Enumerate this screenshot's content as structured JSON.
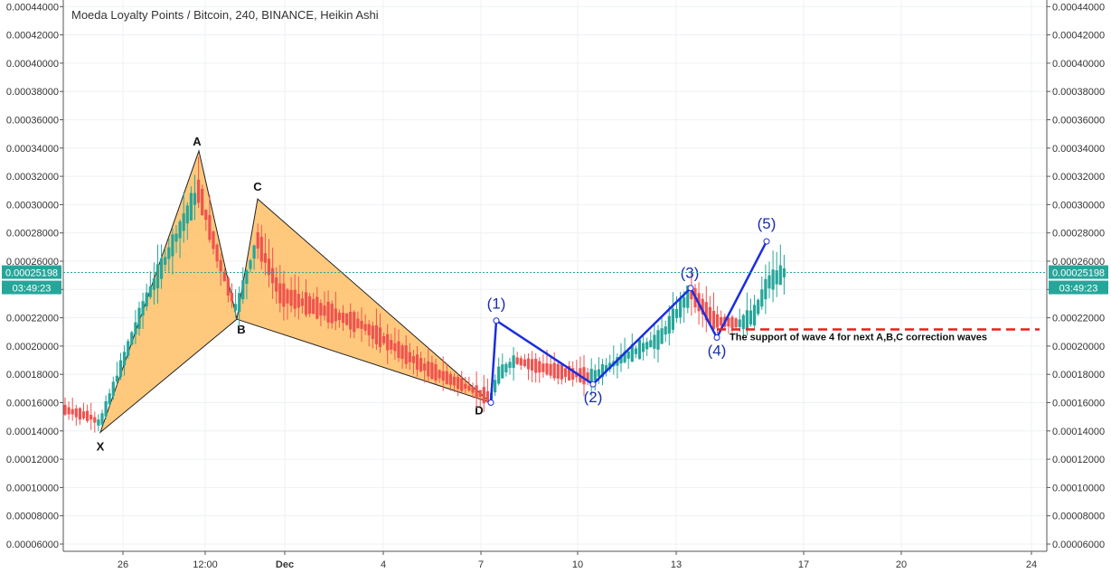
{
  "chart_data": {
    "type": "candlestick",
    "title": "Moeda Loyalty Points / Bitcoin, 240, BINANCE, Heikin Ashi",
    "ylim": [
      6e-05,
      0.000444
    ],
    "y_ticks": [
      "0.00006000",
      "0.00008000",
      "0.00010000",
      "0.00012000",
      "0.00014000",
      "0.00016000",
      "0.00018000",
      "0.00020000",
      "0.00022000",
      "0.00024000",
      "0.00026000",
      "0.00028000",
      "0.00030000",
      "0.00032000",
      "0.00034000",
      "0.00036000",
      "0.00038000",
      "0.00040000",
      "0.00042000",
      "0.00044000"
    ],
    "x_ticks": [
      "26",
      "12:00",
      "Dec",
      "4",
      "7",
      "10",
      "13",
      "17",
      "20",
      "24"
    ],
    "current_price": "0.00025198",
    "countdown": "03:49:23",
    "bullish_color": "#26a69a",
    "bearish_color": "#ef5350",
    "harmonic_color": "#ffbf66",
    "wave_color": "#1a2ee0",
    "support_color": "#e8201e",
    "harmonic_points": [
      {
        "label": "X",
        "price": 0.000139
      },
      {
        "label": "A",
        "price": 0.000338
      },
      {
        "label": "B",
        "price": 0.000219
      },
      {
        "label": "C",
        "price": 0.000304
      },
      {
        "label": "D",
        "price": 0.00016
      }
    ],
    "wave_points": [
      {
        "label": "",
        "price": 0.00016
      },
      {
        "label": "(1)",
        "price": 0.000218
      },
      {
        "label": "(2)",
        "price": 0.000173
      },
      {
        "label": "(3)",
        "price": 0.000241
      },
      {
        "label": "(4)",
        "price": 0.000206
      },
      {
        "label": "(5)",
        "price": 0.000274
      }
    ],
    "support": {
      "price": 0.000206,
      "label": "The support of wave 4 for next A,B,C correction waves"
    }
  }
}
